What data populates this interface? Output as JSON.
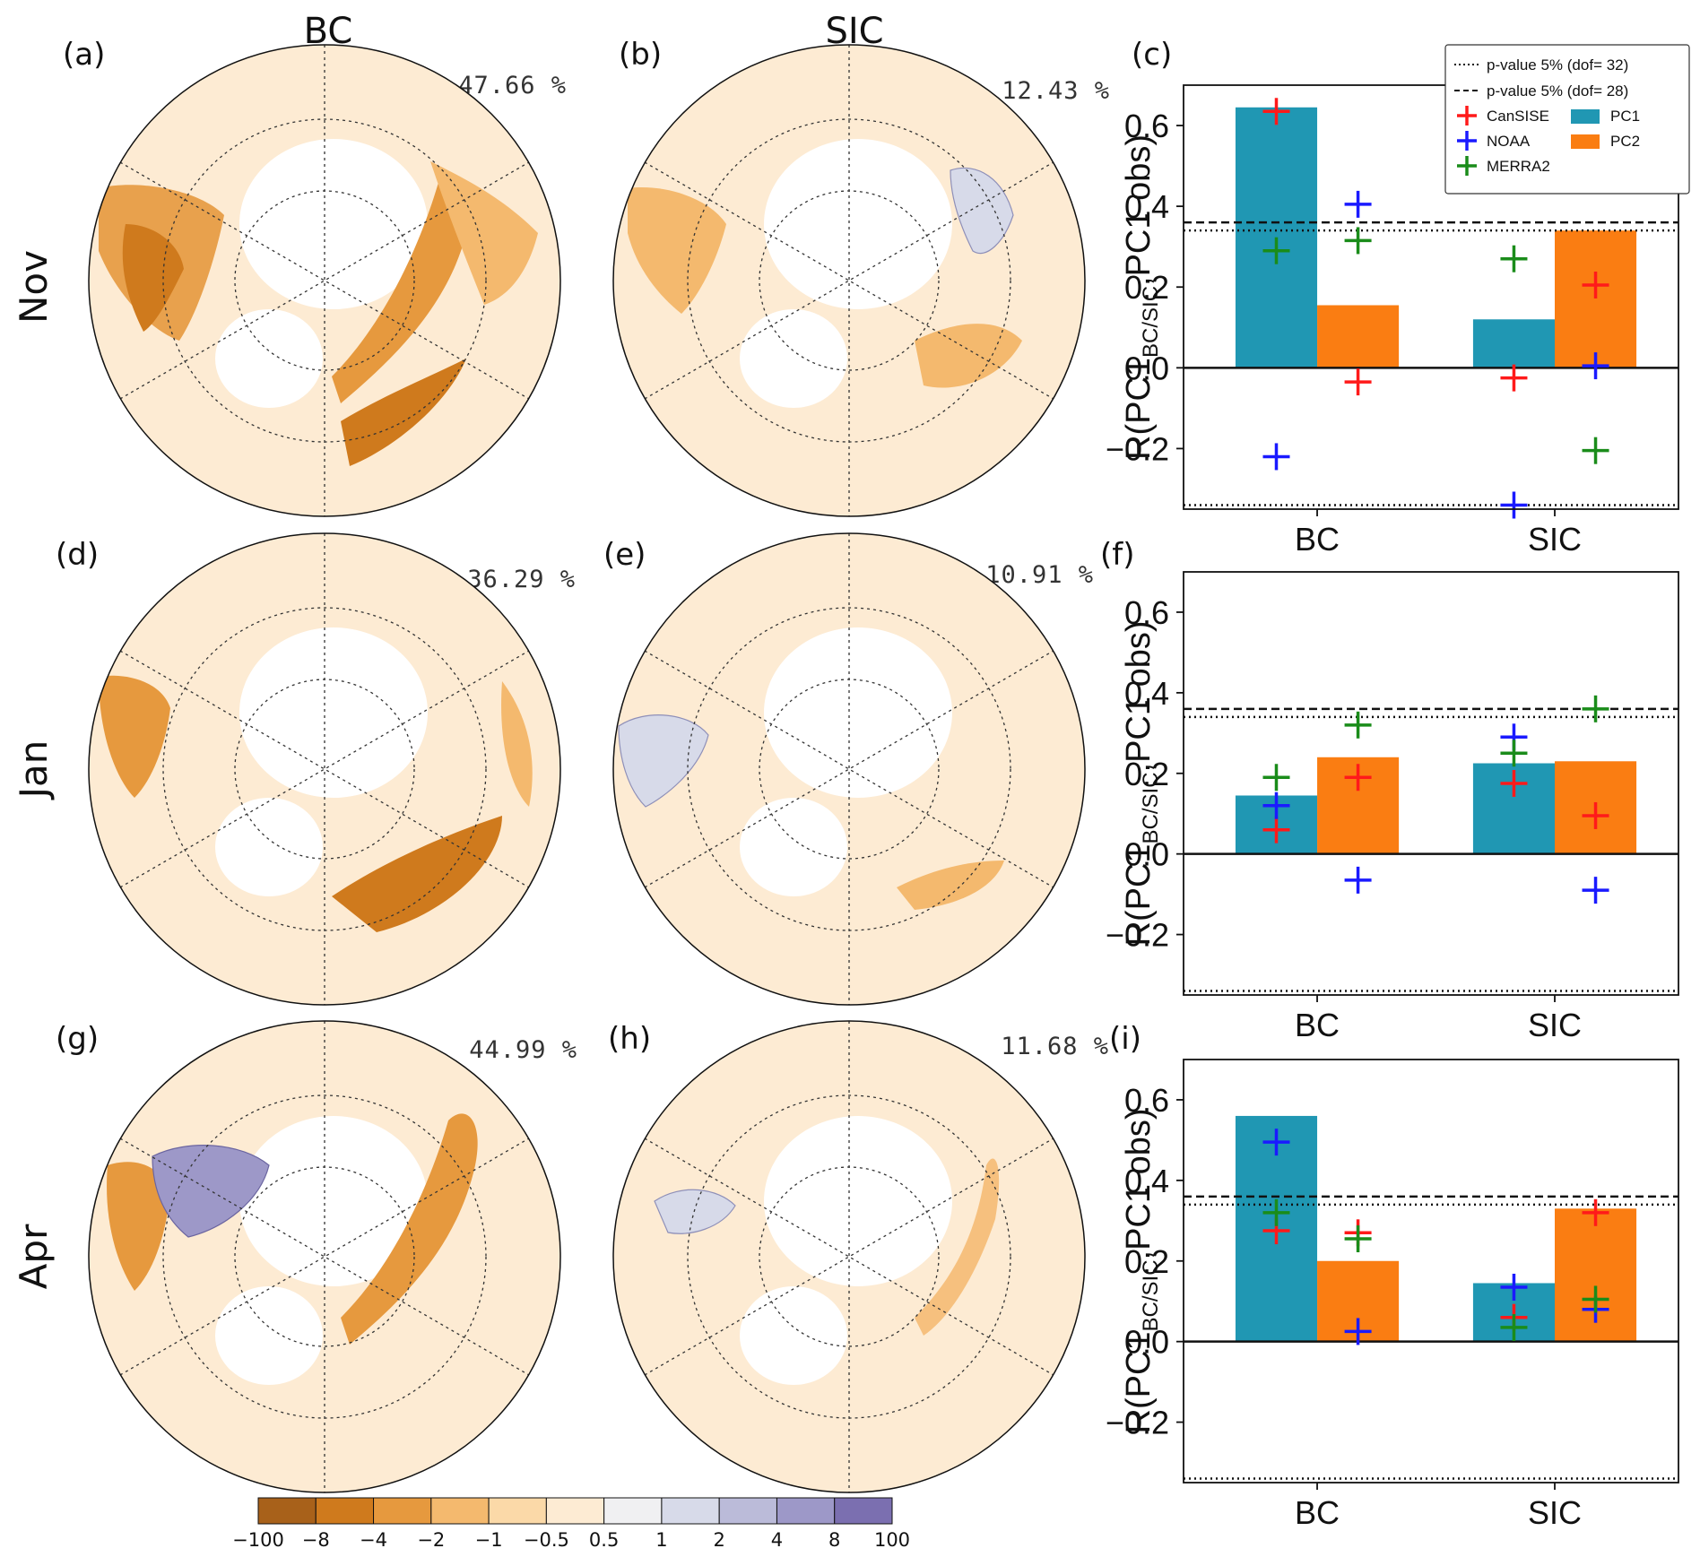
{
  "figure": {
    "column_titles": [
      "BC",
      "SIC"
    ],
    "row_labels": [
      "Nov",
      "Jan",
      "Apr"
    ],
    "panel_letters": [
      "(a)",
      "(b)",
      "(c)",
      "(d)",
      "(e)",
      "(f)",
      "(g)",
      "(h)",
      "(i)"
    ],
    "map_variance_labels": [
      "47.66 %",
      "12.43 %",
      "36.29 %",
      "10.91 %",
      "44.99 %",
      "11.68 %"
    ]
  },
  "colorbar": {
    "ticks": [
      "−100",
      "−8",
      "−4",
      "−2",
      "−1",
      "−0.5",
      "0.5",
      "1",
      "2",
      "4",
      "8",
      "100"
    ],
    "colors": [
      "#a8611a",
      "#cf7a1d",
      "#e6993e",
      "#f4b96e",
      "#fbd9a8",
      "#fdebd3",
      "#f0f0f2",
      "#d7dae9",
      "#bbbbd9",
      "#9d98c8",
      "#7b6fb0"
    ]
  },
  "colors": {
    "PC1": "#2097b3",
    "PC2": "#fa7d12",
    "CanSISE": "#ff1a1a",
    "NOAA": "#1a1aff",
    "MERRA2": "#1a8c1a"
  },
  "chart_data": [
    {
      "type": "bar",
      "panel": "(c)",
      "month": "Nov",
      "categories": [
        "BC",
        "SIC"
      ],
      "series": [
        {
          "name": "PC1",
          "values": [
            0.645,
            0.12
          ]
        },
        {
          "name": "PC2",
          "values": [
            0.155,
            0.34
          ]
        }
      ],
      "markers": {
        "CanSISE": {
          "PC1": [
            0.635,
            -0.025
          ],
          "PC2": [
            -0.035,
            0.205
          ]
        },
        "NOAA": {
          "PC1": [
            -0.22,
            -0.34
          ],
          "PC2": [
            0.405,
            0.005
          ]
        },
        "MERRA2": {
          "PC1": [
            0.29,
            0.27
          ],
          "PC2": [
            0.315,
            -0.205
          ]
        }
      },
      "thresholds": {
        "dof32": 0.34,
        "dof28": 0.36
      },
      "ylabel_main": "R(PC1",
      "ylabel_sub": "BC/SIC",
      "ylabel_end": ",PC1 obs)",
      "ylim": [
        -0.35,
        0.7
      ],
      "yticks": [
        -0.2,
        0.0,
        0.2,
        0.4,
        0.6
      ],
      "ytick_labels": [
        "−0.2",
        "0.0",
        "0.2",
        "0.4",
        "0.6"
      ],
      "legend": {
        "dof32": "p-value 5% (dof= 32)",
        "dof28": "p-value 5% (dof= 28)",
        "CanSISE": "CanSISE",
        "NOAA": "NOAA",
        "MERRA2": "MERRA2",
        "PC1": "PC1",
        "PC2": "PC2"
      }
    },
    {
      "type": "bar",
      "panel": "(f)",
      "month": "Jan",
      "categories": [
        "BC",
        "SIC"
      ],
      "series": [
        {
          "name": "PC1",
          "values": [
            0.145,
            0.225
          ]
        },
        {
          "name": "PC2",
          "values": [
            0.24,
            0.23
          ]
        }
      ],
      "markers": {
        "CanSISE": {
          "PC1": [
            0.06,
            0.175
          ],
          "PC2": [
            0.19,
            0.095
          ]
        },
        "NOAA": {
          "PC1": [
            0.12,
            0.29
          ],
          "PC2": [
            -0.065,
            -0.09
          ]
        },
        "MERRA2": {
          "PC1": [
            0.19,
            0.25
          ],
          "PC2": [
            0.32,
            0.36
          ]
        }
      },
      "thresholds": {
        "dof32": 0.34,
        "dof28": 0.36
      },
      "ylabel_main": "R(PC1",
      "ylabel_sub": "BC/SIC",
      "ylabel_end": ",PC1 obs)",
      "ylim": [
        -0.35,
        0.7
      ],
      "yticks": [
        -0.2,
        0.0,
        0.2,
        0.4,
        0.6
      ],
      "ytick_labels": [
        "−0.2",
        "0.0",
        "0.2",
        "0.4",
        "0.6"
      ]
    },
    {
      "type": "bar",
      "panel": "(i)",
      "month": "Apr",
      "categories": [
        "BC",
        "SIC"
      ],
      "series": [
        {
          "name": "PC1",
          "values": [
            0.56,
            0.145
          ]
        },
        {
          "name": "PC2",
          "values": [
            0.2,
            0.33
          ]
        }
      ],
      "markers": {
        "CanSISE": {
          "PC1": [
            0.275,
            0.06
          ],
          "PC2": [
            0.27,
            0.32
          ]
        },
        "NOAA": {
          "PC1": [
            0.495,
            0.135
          ],
          "PC2": [
            0.025,
            0.08
          ]
        },
        "MERRA2": {
          "PC1": [
            0.32,
            0.035
          ],
          "PC2": [
            0.255,
            0.105
          ]
        }
      },
      "thresholds": {
        "dof32": 0.34,
        "dof28": 0.36
      },
      "ylabel_main": "R(PC1",
      "ylabel_sub": "BC/SIC",
      "ylabel_end": ",PC1 obs)",
      "ylim": [
        -0.35,
        0.7
      ],
      "yticks": [
        -0.2,
        0.0,
        0.2,
        0.4,
        0.6
      ],
      "ytick_labels": [
        "−0.2",
        "0.0",
        "0.2",
        "0.4",
        "0.6"
      ]
    }
  ]
}
